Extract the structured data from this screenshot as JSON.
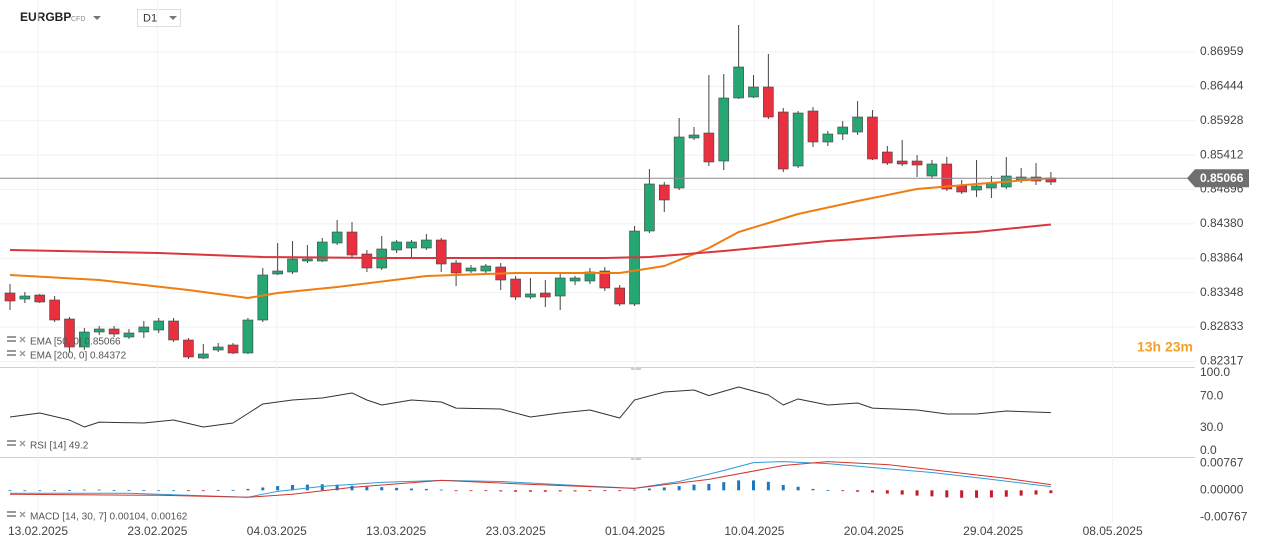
{
  "chart_data": {
    "type": "candlestick",
    "symbol": "EURGBP",
    "instrument_type": "CFD",
    "timeframe": "D1",
    "countdown": "13h 23m",
    "current_price": 0.85066,
    "up_color": "#26a672",
    "down_color": "#e8303f",
    "ylim": [
      0.82234,
      0.87664
    ],
    "yticks": [
      0.86959,
      0.86444,
      0.85928,
      0.85412,
      0.84896,
      {
        "value": 0.8438,
        "label": "0.84380"
      },
      0.83864,
      0.83348,
      0.82833,
      0.82317
    ],
    "grid": true,
    "dates": [
      "13.02.2025",
      "23.02.2025",
      "04.03.2025",
      "13.03.2025",
      "23.03.2025",
      "01.04.2025",
      "10.04.2025",
      "20.04.2025",
      "29.04.2025",
      "08.05.2025"
    ],
    "ohlc": [
      [
        0.83344,
        0.83479,
        0.83089,
        0.83224
      ],
      [
        0.83254,
        0.83359,
        0.83194,
        0.83299
      ],
      [
        0.83314,
        0.83329,
        0.83194,
        0.83209
      ],
      [
        0.83239,
        0.83299,
        0.82909,
        0.82939
      ],
      [
        0.82954,
        0.82984,
        0.82459,
        0.82534
      ],
      [
        0.82534,
        0.82819,
        0.82489,
        0.82759
      ],
      [
        0.82759,
        0.82849,
        0.82714,
        0.82804
      ],
      [
        0.82804,
        0.82849,
        0.82684,
        0.82729
      ],
      [
        0.82684,
        0.82804,
        0.82654,
        0.82744
      ],
      [
        0.82759,
        0.82924,
        0.82669,
        0.82834
      ],
      [
        0.82789,
        0.82969,
        0.82744,
        0.82924
      ],
      [
        0.82924,
        0.82969,
        0.82609,
        0.82639
      ],
      [
        0.82639,
        0.82669,
        0.82354,
        0.82384
      ],
      [
        0.82369,
        0.82579,
        0.82354,
        0.82429
      ],
      [
        0.82489,
        0.82594,
        0.82459,
        0.82534
      ],
      [
        0.82564,
        0.82594,
        0.82429,
        0.82444
      ],
      [
        0.82444,
        0.82969,
        0.82429,
        0.82939
      ],
      [
        0.82939,
        0.83719,
        0.82909,
        0.83614
      ],
      [
        0.83629,
        0.84094,
        0.83614,
        0.83674
      ],
      [
        0.83659,
        0.84124,
        0.83629,
        0.83854
      ],
      [
        0.83824,
        0.84064,
        0.83794,
        0.83854
      ],
      [
        0.83824,
        0.84169,
        0.83809,
        0.84109
      ],
      [
        0.84094,
        0.84439,
        0.84064,
        0.84259
      ],
      [
        0.84259,
        0.84409,
        0.83884,
        0.83914
      ],
      [
        0.83929,
        0.83989,
        0.83659,
        0.83719
      ],
      [
        0.83719,
        0.84199,
        0.83689,
        0.84004
      ],
      [
        0.83989,
        0.84139,
        0.83944,
        0.84109
      ],
      [
        0.84019,
        0.84139,
        0.83869,
        0.84109
      ],
      [
        0.84019,
        0.84229,
        0.83989,
        0.84139
      ],
      [
        0.84139,
        0.84169,
        0.83659,
        0.83779
      ],
      [
        0.83794,
        0.83839,
        0.83449,
        0.83644
      ],
      [
        0.83674,
        0.83764,
        0.83644,
        0.83719
      ],
      [
        0.83674,
        0.83779,
        0.83644,
        0.83749
      ],
      [
        0.83734,
        0.83794,
        0.83389,
        0.83539
      ],
      [
        0.83554,
        0.83599,
        0.83239,
        0.83284
      ],
      [
        0.83284,
        0.83569,
        0.83254,
        0.83329
      ],
      [
        0.83344,
        0.83539,
        0.83134,
        0.83284
      ],
      [
        0.83299,
        0.83659,
        0.83089,
        0.83569
      ],
      [
        0.83524,
        0.83599,
        0.83464,
        0.83569
      ],
      [
        0.83524,
        0.83719,
        0.83479,
        0.83659
      ],
      [
        0.83674,
        0.83734,
        0.83374,
        0.83419
      ],
      [
        0.83419,
        0.83464,
        0.83149,
        0.83179
      ],
      [
        0.83179,
        0.84349,
        0.83149,
        0.84274
      ],
      [
        0.84274,
        0.85204,
        0.84244,
        0.84979
      ],
      [
        0.84964,
        0.85009,
        0.84559,
        0.84739
      ],
      [
        0.84919,
        0.85969,
        0.84889,
        0.85684
      ],
      [
        0.85669,
        0.85834,
        0.85639,
        0.85714
      ],
      [
        0.85744,
        0.86614,
        0.85249,
        0.85309
      ],
      [
        0.85324,
        0.86629,
        0.85189,
        0.86269
      ],
      [
        0.86269,
        0.87364,
        0.86254,
        0.86734
      ],
      [
        0.86284,
        0.86614,
        0.86269,
        0.86434
      ],
      [
        0.86434,
        0.86929,
        0.85954,
        0.85984
      ],
      [
        0.86059,
        0.86119,
        0.85159,
        0.85204
      ],
      [
        0.85249,
        0.86074,
        0.85219,
        0.86044
      ],
      [
        0.86074,
        0.86134,
        0.85534,
        0.85609
      ],
      [
        0.85609,
        0.85774,
        0.85549,
        0.85729
      ],
      [
        0.85729,
        0.85924,
        0.85639,
        0.85834
      ],
      [
        0.85759,
        0.86224,
        0.85714,
        0.85984
      ],
      [
        0.85984,
        0.86089,
        0.85339,
        0.85354
      ],
      [
        0.85459,
        0.85549,
        0.85264,
        0.85294
      ],
      [
        0.85324,
        0.85639,
        0.85249,
        0.85279
      ],
      [
        0.85324,
        0.85414,
        0.85084,
        0.85264
      ],
      [
        0.85099,
        0.85339,
        0.85054,
        0.85279
      ],
      [
        0.85279,
        0.85384,
        0.84874,
        0.84904
      ],
      [
        0.84949,
        0.85039,
        0.84829,
        0.84859
      ],
      [
        0.84889,
        0.85339,
        0.84784,
        0.84949
      ],
      [
        0.84919,
        0.85099,
        0.84769,
        0.84994
      ],
      [
        0.84934,
        0.85384,
        0.84904,
        0.85099
      ],
      [
        0.85039,
        0.85219,
        0.84994,
        0.85084
      ],
      [
        0.85084,
        0.85294,
        0.84964,
        0.85024
      ],
      [
        0.85069,
        0.85159,
        0.84964,
        0.85009
      ]
    ],
    "series": [
      {
        "name": "EMA [50, 0] 0.85066",
        "color": "#f07d12",
        "x": [
          0,
          6,
          12,
          16,
          18,
          22,
          28,
          34,
          41,
          44,
          47,
          49,
          53,
          57,
          61,
          65,
          70
        ],
        "values": [
          0.83614,
          0.83539,
          0.83389,
          0.83269,
          0.83344,
          0.83434,
          0.83599,
          0.83644,
          0.83644,
          0.83749,
          0.84019,
          0.84259,
          0.84529,
          0.84724,
          0.84904,
          0.84979,
          0.85066
        ]
      },
      {
        "name": "EMA [200, 0] 0.84372",
        "color": "#d9363e",
        "x": [
          0,
          10,
          17,
          25,
          40,
          43,
          48,
          55,
          60,
          65,
          70
        ],
        "values": [
          0.83989,
          0.83944,
          0.83884,
          0.83869,
          0.83869,
          0.83884,
          0.83974,
          0.84124,
          0.84199,
          0.84259,
          0.84372
        ]
      }
    ],
    "rsi": {
      "name": "RSI [14] 49.2",
      "color": "#333333",
      "ylim": [
        0,
        100
      ],
      "yticks": [
        {
          "value": 100,
          "label": "100.0"
        },
        {
          "value": 70,
          "label": "70.0"
        },
        {
          "value": 30,
          "label": "30.0"
        },
        {
          "value": 0,
          "label": "0.0"
        }
      ],
      "x": [
        0,
        2,
        4,
        5,
        6,
        9,
        11,
        13,
        15,
        17,
        19,
        21,
        23,
        24,
        25,
        27,
        29,
        30,
        33,
        35,
        37,
        39,
        41,
        42,
        44,
        46,
        47,
        49,
        51,
        52,
        53,
        55,
        57,
        58,
        61,
        63,
        65,
        67,
        70
      ],
      "values": [
        43.6,
        48.7,
        39.7,
        30.8,
        37,
        35.9,
        39.7,
        30.8,
        35.9,
        60.3,
        65.4,
        68,
        74.4,
        65.4,
        59,
        65.4,
        62.8,
        55,
        53.8,
        43.6,
        48.7,
        52.6,
        42.3,
        65.4,
        75.6,
        78.2,
        71,
        82,
        71.8,
        59,
        66.7,
        59,
        61.5,
        55,
        52.6,
        47.4,
        47.4,
        51.3,
        49.2
      ]
    },
    "macd": {
      "name": "MACD [14, 30, 7] 0.00104, 0.00162",
      "ylim": [
        -0.0092,
        0.0091
      ],
      "yticks": [
        0.00767,
        {
          "value": 0,
          "label": "0.00000"
        },
        -0.00767
      ],
      "histogram": {
        "up_color": "#1a78c2",
        "down_color": "#c41a2b",
        "values": [
          0,
          0,
          0,
          0,
          0.0001,
          0.0002,
          0.0002,
          0.0001,
          0.0001,
          0.0001,
          0,
          0,
          -0.0001,
          -0.0001,
          0.0001,
          0.0001,
          0.0004,
          0.0008,
          0.0012,
          0.0015,
          0.0016,
          0.0017,
          0.0016,
          0.0013,
          0.001,
          0.0009,
          0.0007,
          0.0005,
          0.0004,
          0.0002,
          -0.0001,
          -0.0001,
          -0.0002,
          -0.0003,
          -0.0004,
          -0.0004,
          -0.0004,
          -0.0003,
          -0.0003,
          -0.0002,
          -0.0002,
          -0.0002,
          0.0002,
          0.0005,
          0.0008,
          0.0012,
          0.0016,
          0.0018,
          0.0023,
          0.0028,
          0.0028,
          0.0024,
          0.0015,
          0.001,
          0.0004,
          0.0001,
          -0.0002,
          -0.0004,
          -0.0006,
          -0.0009,
          -0.0012,
          -0.0015,
          -0.0017,
          -0.002,
          -0.0021,
          -0.0021,
          -0.002,
          -0.0018,
          -0.0015,
          -0.0012,
          -0.0008
        ]
      },
      "lines": [
        {
          "color": "#2f9bd8",
          "x": [
            0,
            8,
            16,
            18,
            21,
            25,
            29,
            33,
            38,
            42,
            45,
            48,
            50,
            52,
            55,
            58,
            62,
            66,
            70
          ],
          "values": [
            -0.00084,
            -0.00084,
            -0.00195,
            -0.00028,
            0.00112,
            0.00223,
            0.00279,
            0.0025,
            0.0014,
            0.00056,
            0.0025,
            0.00558,
            0.00781,
            0.00809,
            0.00753,
            0.00642,
            0.00502,
            0.00307,
            0.00104
          ]
        },
        {
          "color": "#d1352b",
          "x": [
            0,
            10,
            16,
            19,
            23,
            29,
            35,
            42,
            47,
            52,
            55,
            59,
            63,
            67,
            70
          ],
          "values": [
            -0.00112,
            -0.0014,
            -0.00195,
            -0.00112,
            0.00084,
            0.00279,
            0.00167,
            0.00056,
            0.00307,
            0.00698,
            0.00809,
            0.00725,
            0.0053,
            0.00335,
            0.00162
          ]
        }
      ]
    }
  }
}
